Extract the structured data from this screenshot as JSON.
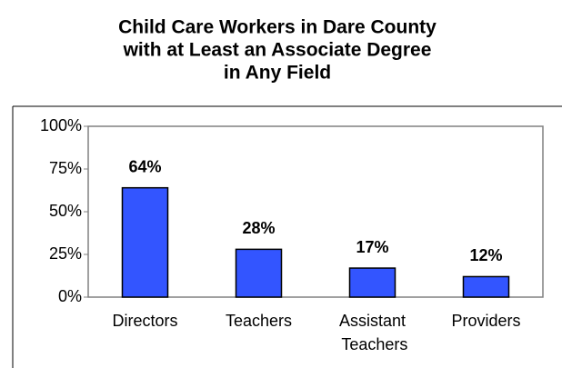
{
  "chart_data": {
    "type": "bar",
    "title": [
      "Child Care Workers in Dare County",
      "with at Least an Associate Degree",
      "in Any Field"
    ],
    "categories": [
      "Directors",
      "Teachers",
      "Assistant Teachers",
      "Providers"
    ],
    "values": [
      64,
      28,
      17,
      12
    ],
    "value_labels": [
      "64%",
      "28%",
      "17%",
      "12%"
    ],
    "color": "#3355ff",
    "ylim": [
      0,
      100
    ],
    "yticks": [
      {
        "value": 0,
        "label": "0%"
      },
      {
        "value": 25,
        "label": "25%"
      },
      {
        "value": 50,
        "label": "50%"
      },
      {
        "value": 75,
        "label": "75%"
      },
      {
        "value": 100,
        "label": "100%"
      }
    ],
    "grid": false
  }
}
